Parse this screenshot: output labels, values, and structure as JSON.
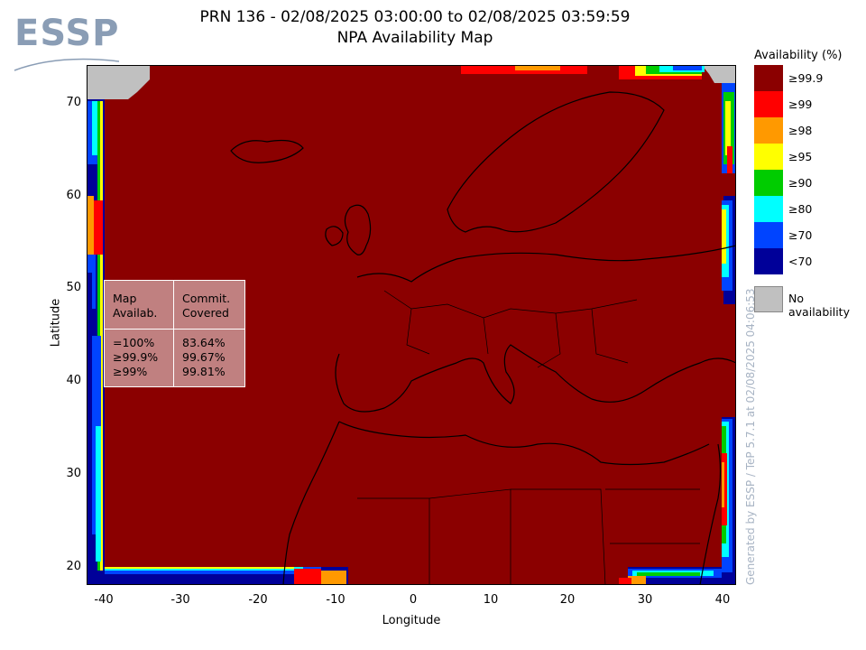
{
  "header": {
    "logo_text": "ESSP",
    "title_line1": "PRN 136 - 02/08/2025 03:00:00 to 02/08/2025 03:59:59",
    "title_line2": "NPA Availability Map"
  },
  "axes": {
    "x_label": "Longitude",
    "y_label": "Latitude",
    "lon_ticks": [
      "-40",
      "-30",
      "-20",
      "-10",
      "0",
      "10",
      "20",
      "30",
      "40"
    ],
    "lat_ticks": [
      "70",
      "60",
      "50",
      "40",
      "30",
      "20"
    ],
    "lon_range": [
      -42,
      42
    ],
    "lat_range": [
      18,
      74
    ]
  },
  "stats_box": {
    "col1_header": "Map\nAvailab.",
    "col2_header": "Commit.\nCovered",
    "rows": [
      {
        "level": "=100%",
        "covered": "83.64%"
      },
      {
        "level": "≥99.9%",
        "covered": "99.67%"
      },
      {
        "level": "≥99%",
        "covered": "99.81%"
      }
    ]
  },
  "legend": {
    "title": "Availability (%)",
    "items": [
      {
        "label": "≥99.9",
        "color": "#8b0000"
      },
      {
        "label": "≥99",
        "color": "#ff0000"
      },
      {
        "label": "≥98",
        "color": "#ff9900"
      },
      {
        "label": "≥95",
        "color": "#ffff00"
      },
      {
        "label": "≥90",
        "color": "#00cc00"
      },
      {
        "label": "≥80",
        "color": "#00ffff"
      },
      {
        "label": "≥70",
        "color": "#0044ff"
      },
      {
        "label": "<70",
        "color": "#000099"
      }
    ],
    "no_availability_label": "No availability",
    "no_availability_color": "#c0c0c0"
  },
  "footer": {
    "generated_text": "Generated by ESSP / TeP 5.7.1 at 02/08/2025 04:06:53"
  }
}
